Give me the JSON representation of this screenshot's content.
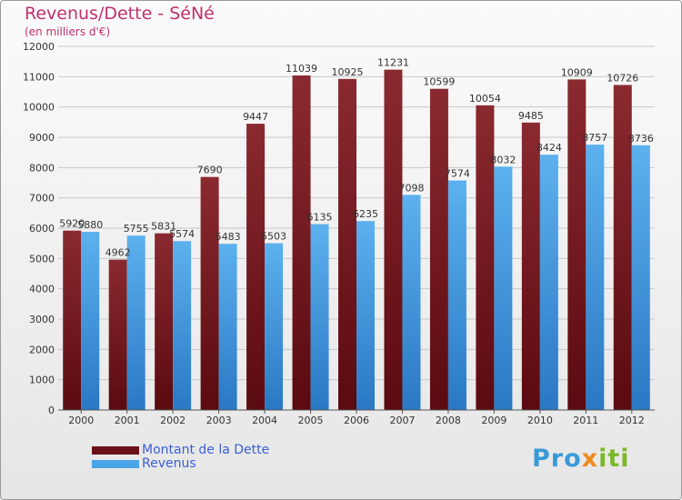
{
  "title": "Revenus/Dette - SéNé",
  "subtitle": "(en milliers d'€)",
  "logo": {
    "part1": "Pro",
    "part2": "x",
    "part3": "iti"
  },
  "colors": {
    "dette": "#7a1d25",
    "revenus": "#4aa4e8",
    "title": "#c0306e",
    "legend_text": "#3b5fd6"
  },
  "chart_data": {
    "type": "bar",
    "categories": [
      "2000",
      "2001",
      "2002",
      "2003",
      "2004",
      "2005",
      "2006",
      "2007",
      "2008",
      "2009",
      "2010",
      "2011",
      "2012"
    ],
    "series": [
      {
        "name": "Montant de la Dette",
        "values": [
          5920,
          4962,
          5831,
          7690,
          9447,
          11039,
          10925,
          11231,
          10599,
          10054,
          9485,
          10909,
          10726
        ]
      },
      {
        "name": "Revenus",
        "values": [
          5880,
          5755,
          5574,
          5483,
          5503,
          6135,
          6235,
          7098,
          7574,
          8032,
          8424,
          8757,
          8736
        ]
      }
    ],
    "ylim": [
      0,
      12000
    ],
    "yticks": [
      0,
      1000,
      2000,
      3000,
      4000,
      5000,
      6000,
      7000,
      8000,
      9000,
      10000,
      11000,
      12000
    ],
    "grid": true,
    "legend_position": "bottom-left"
  }
}
